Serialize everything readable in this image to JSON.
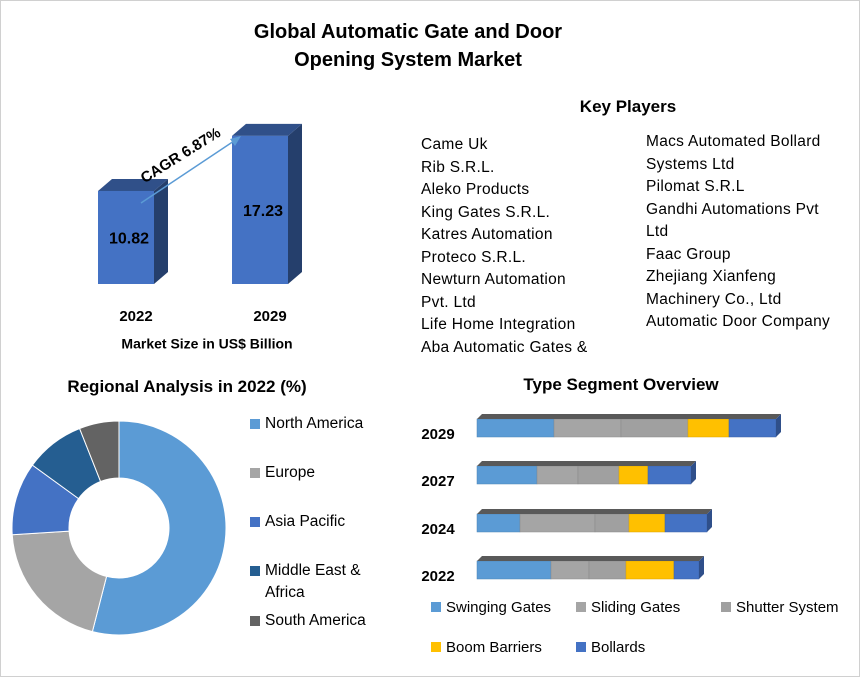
{
  "title": "Global Automatic Gate and Door Opening System Market",
  "key_players": {
    "title": "Key Players",
    "columns": [
      [
        "Came Uk",
        "Rib S.R.L.",
        "Aleko Products",
        "King Gates S.R.L.",
        "Katres Automation",
        "Proteco S.R.L.",
        "Newturn Automation Pvt. Ltd",
        "Life Home Integration",
        "Aba Automatic Gates &"
      ],
      [
        "Macs Automated Bollard Systems Ltd",
        "Pilomat S.R.L",
        "Gandhi Automations Pvt Ltd",
        "Faac Group",
        "Zhejiang Xianfeng Machinery Co., Ltd",
        "Automatic Door Company"
      ]
    ]
  },
  "chart_data": [
    {
      "type": "bar",
      "categories": [
        "2022",
        "2029"
      ],
      "values": [
        10.82,
        17.23
      ],
      "color": "#4472c4",
      "annotation": "CAGR 6.87%",
      "xlabel": "Market Size in US$ Billion"
    },
    {
      "type": "pie",
      "title": "Regional Analysis in 2022 (%)",
      "donut": true,
      "legend": "right",
      "categories": [
        "North America",
        "Europe",
        "Asia Pacific",
        "Middle East & Africa",
        "South America"
      ],
      "values": [
        54,
        20,
        11,
        9,
        6
      ],
      "colors": [
        "#5b9bd5",
        "#a5a5a5",
        "#4472c4",
        "#255e91",
        "#636363"
      ]
    },
    {
      "type": "stacked-barh",
      "title": "Type Segment Overview",
      "legend": "bottom",
      "categories": [
        "2029",
        "2027",
        "2024",
        "2022"
      ],
      "series": [
        {
          "name": "Swinging Gates",
          "color": "#5b9bd5",
          "values": [
            77,
            60,
            43,
            74
          ]
        },
        {
          "name": "Sliding Gates",
          "color": "#a5a5a5",
          "values": [
            67,
            41,
            75,
            38
          ]
        },
        {
          "name": "Shutter System",
          "color": "#a0a0a0",
          "values": [
            67,
            41,
            34,
            37
          ]
        },
        {
          "name": "Boom Barriers",
          "color": "#ffc000",
          "values": [
            41,
            29,
            36,
            48
          ]
        },
        {
          "name": "Bollards",
          "color": "#4472c4",
          "values": [
            47,
            43,
            42,
            25
          ]
        }
      ]
    }
  ]
}
